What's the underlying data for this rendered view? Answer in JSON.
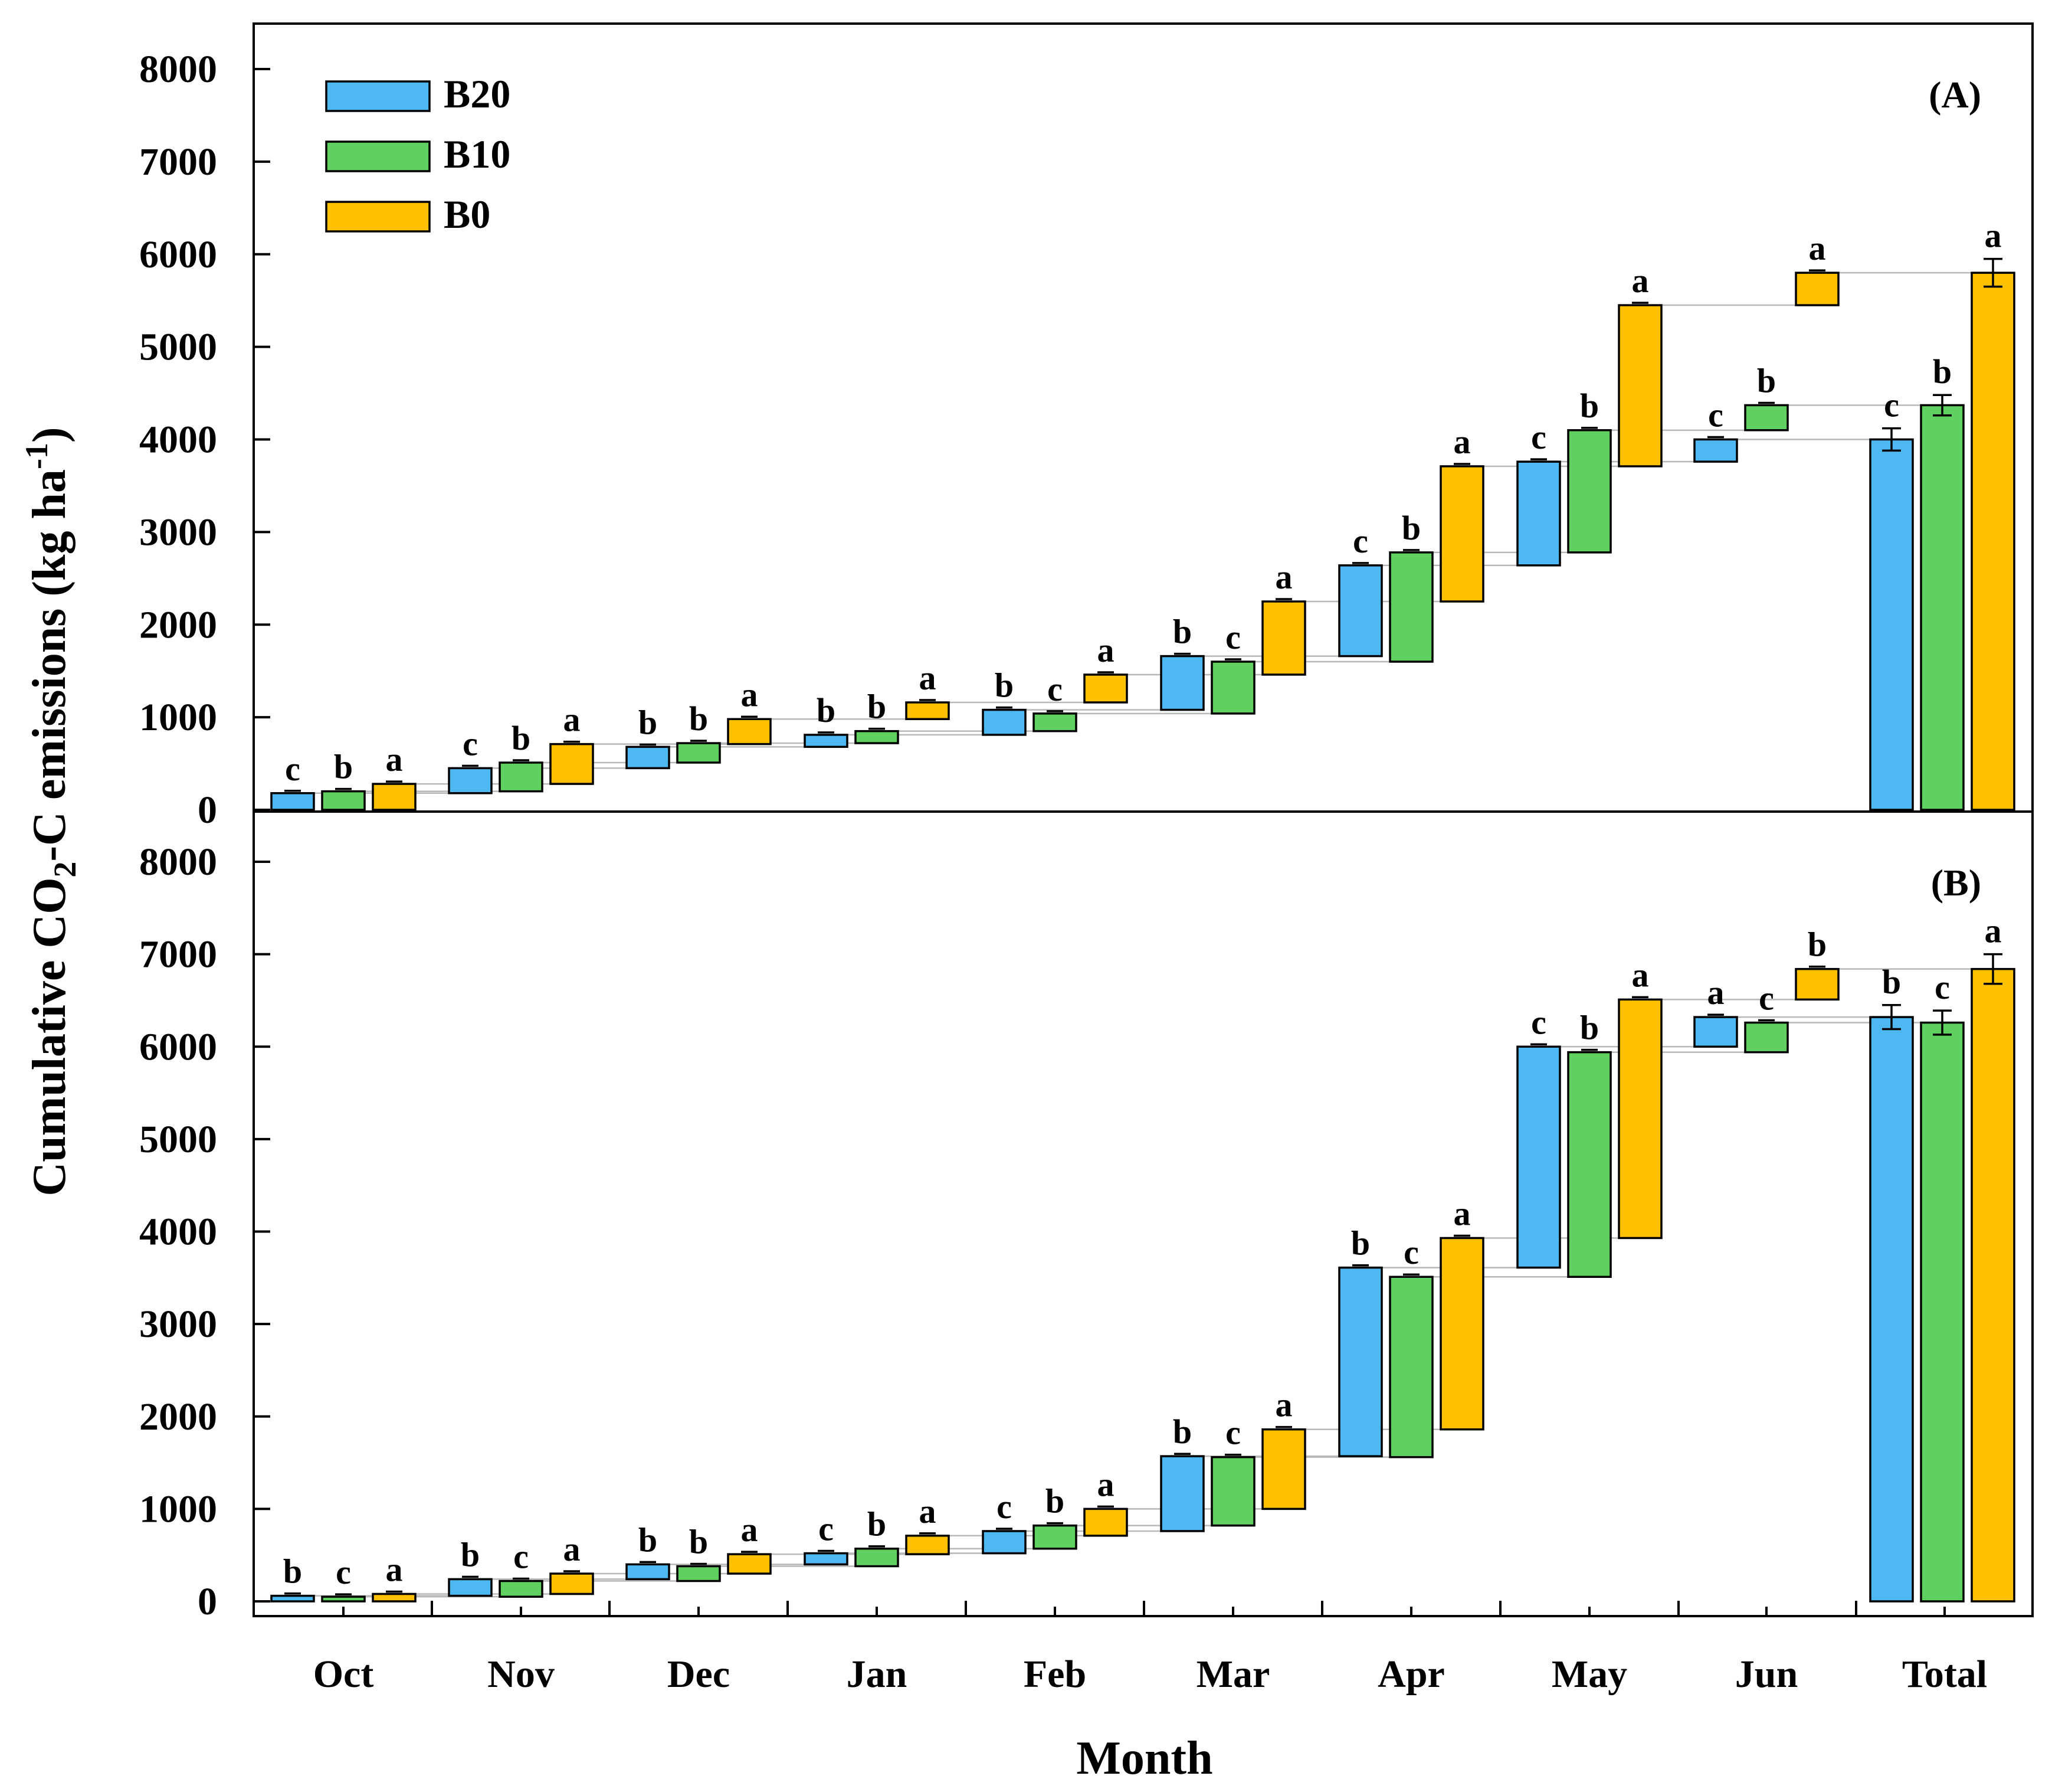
{
  "chart_data": {
    "type": "bar",
    "subtype": "waterfall-cumulative",
    "ylabel": "Cumulative CO2-C emissions (kg ha-1)",
    "ylabel_parts": {
      "prefix": "Cumulative CO",
      "sub": "2",
      "mid": "-C emissions (kg ha",
      "sup": "-1",
      "suffix": ")"
    },
    "xlabel": "Month",
    "categories": [
      "Oct",
      "Nov",
      "Dec",
      "Jan",
      "Feb",
      "Mar",
      "Apr",
      "May",
      "Jun",
      "Total"
    ],
    "ylim": [
      0,
      8000
    ],
    "yticks": [
      0,
      1000,
      2000,
      3000,
      4000,
      5000,
      6000,
      7000,
      8000
    ],
    "legend": {
      "position": "top-left",
      "entries": [
        {
          "name": "B20",
          "color": "#4db8f2"
        },
        {
          "name": "B10",
          "color": "#60d160"
        },
        {
          "name": "B0",
          "color": "#ffc000"
        }
      ]
    },
    "panels": [
      {
        "label": "(A)",
        "series": [
          {
            "name": "B20",
            "color": "#4db8f2",
            "cumulative": [
              180,
              450,
              680,
              810,
              1080,
              1660,
              2640,
              3760,
              4000
            ],
            "total": 4000,
            "total_error": 120,
            "letters": [
              "c",
              "c",
              "b",
              "b",
              "b",
              "b",
              "c",
              "c",
              "c",
              "c"
            ]
          },
          {
            "name": "B10",
            "color": "#60d160",
            "cumulative": [
              200,
              510,
              720,
              850,
              1040,
              1600,
              2780,
              4100,
              4370
            ],
            "total": 4370,
            "total_error": 110,
            "letters": [
              "b",
              "b",
              "b",
              "b",
              "c",
              "c",
              "b",
              "b",
              "b",
              "b"
            ]
          },
          {
            "name": "B0",
            "color": "#ffc000",
            "cumulative": [
              280,
              710,
              980,
              1160,
              1460,
              2250,
              3710,
              5450,
              5800
            ],
            "total": 5800,
            "total_error": 150,
            "letters": [
              "a",
              "a",
              "a",
              "a",
              "a",
              "a",
              "a",
              "a",
              "a",
              "a"
            ]
          }
        ]
      },
      {
        "label": "(B)",
        "series": [
          {
            "name": "B20",
            "color": "#4db8f2",
            "cumulative": [
              60,
              240,
              400,
              520,
              760,
              1570,
              3610,
              6000,
              6320
            ],
            "total": 6320,
            "total_error": 130,
            "letters": [
              "b",
              "b",
              "b",
              "c",
              "c",
              "b",
              "b",
              "c",
              "a",
              "b"
            ]
          },
          {
            "name": "B10",
            "color": "#60d160",
            "cumulative": [
              50,
              220,
              380,
              570,
              820,
              1560,
              3510,
              5940,
              6260
            ],
            "total": 6260,
            "total_error": 130,
            "letters": [
              "c",
              "c",
              "b",
              "b",
              "b",
              "c",
              "c",
              "b",
              "c",
              "c"
            ]
          },
          {
            "name": "B0",
            "color": "#ffc000",
            "cumulative": [
              80,
              300,
              510,
              710,
              1000,
              1860,
              3930,
              6510,
              6840
            ],
            "total": 6840,
            "total_error": 160,
            "letters": [
              "a",
              "a",
              "a",
              "a",
              "a",
              "a",
              "a",
              "a",
              "b",
              "a"
            ]
          }
        ]
      }
    ]
  }
}
